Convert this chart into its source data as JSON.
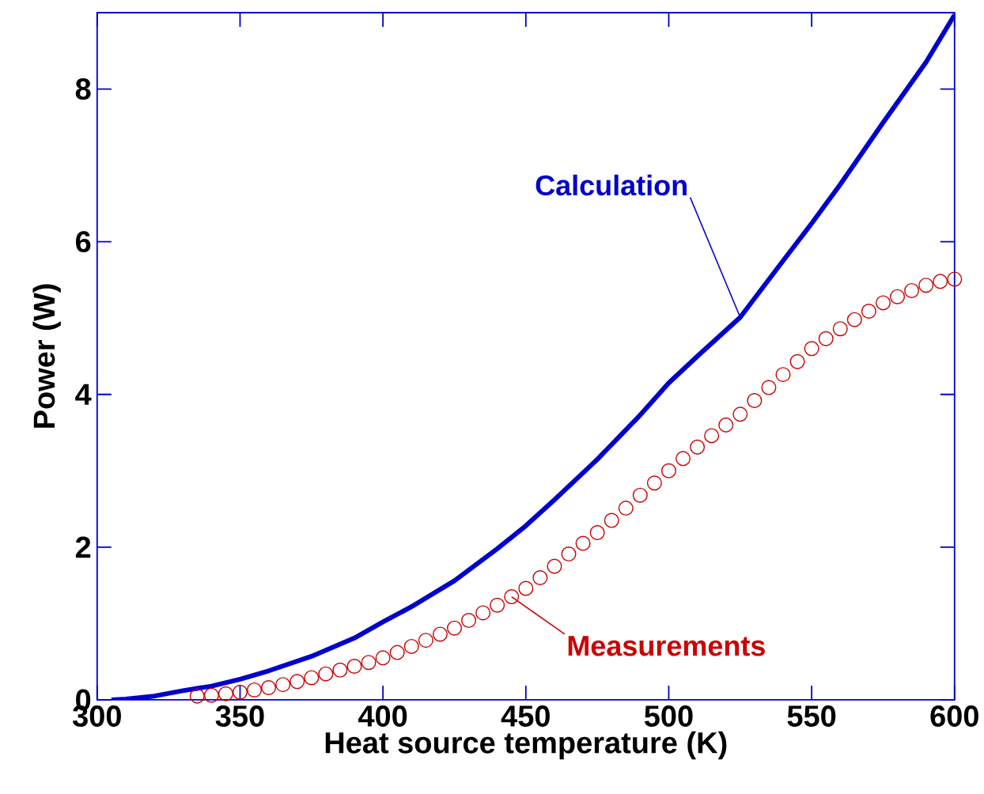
{
  "chart_data": {
    "type": "line",
    "xlabel": "Heat source temperature (K)",
    "ylabel": "Power (W)",
    "xlim": [
      300,
      600
    ],
    "ylim": [
      0,
      9
    ],
    "xticks": [
      300,
      350,
      400,
      450,
      500,
      550,
      600
    ],
    "yticks": [
      0,
      2,
      4,
      6,
      8
    ],
    "grid": false,
    "legend": false,
    "series": [
      {
        "name": "Calculation",
        "color": "#0000cc",
        "marker": "none",
        "line_style": "solid",
        "x": [
          305,
          310,
          320,
          330,
          340,
          350,
          360,
          375,
          390,
          400,
          410,
          425,
          440,
          450,
          460,
          475,
          490,
          500,
          510,
          525,
          540,
          550,
          560,
          575,
          590,
          600
        ],
        "values": [
          0,
          0.01,
          0.05,
          0.12,
          0.18,
          0.27,
          0.38,
          0.57,
          0.81,
          1.02,
          1.22,
          1.56,
          1.98,
          2.28,
          2.62,
          3.15,
          3.73,
          4.15,
          4.5,
          5.01,
          5.75,
          6.24,
          6.75,
          7.56,
          8.35,
          8.97
        ]
      },
      {
        "name": "Measurements",
        "type": "scatter",
        "color": "#cc0000",
        "marker": "circle",
        "x": [
          335,
          340,
          345,
          350,
          355,
          360,
          365,
          370,
          375,
          380,
          385,
          390,
          395,
          400,
          405,
          410,
          415,
          420,
          425,
          430,
          435,
          440,
          445,
          450,
          455,
          460,
          465,
          470,
          475,
          480,
          485,
          490,
          495,
          500,
          505,
          510,
          515,
          520,
          525,
          530,
          535,
          540,
          545,
          550,
          555,
          560,
          565,
          570,
          575,
          580,
          585,
          590,
          595,
          600
        ],
        "values": [
          0.05,
          0.06,
          0.08,
          0.1,
          0.13,
          0.16,
          0.2,
          0.24,
          0.29,
          0.34,
          0.39,
          0.44,
          0.49,
          0.55,
          0.62,
          0.7,
          0.78,
          0.86,
          0.94,
          1.04,
          1.14,
          1.24,
          1.35,
          1.46,
          1.6,
          1.75,
          1.91,
          2.05,
          2.19,
          2.35,
          2.51,
          2.68,
          2.84,
          3.0,
          3.16,
          3.31,
          3.46,
          3.6,
          3.74,
          3.92,
          4.09,
          4.26,
          4.43,
          4.6,
          4.73,
          4.86,
          4.98,
          5.09,
          5.2,
          5.28,
          5.36,
          5.43,
          5.48,
          5.51
        ]
      }
    ]
  }
}
